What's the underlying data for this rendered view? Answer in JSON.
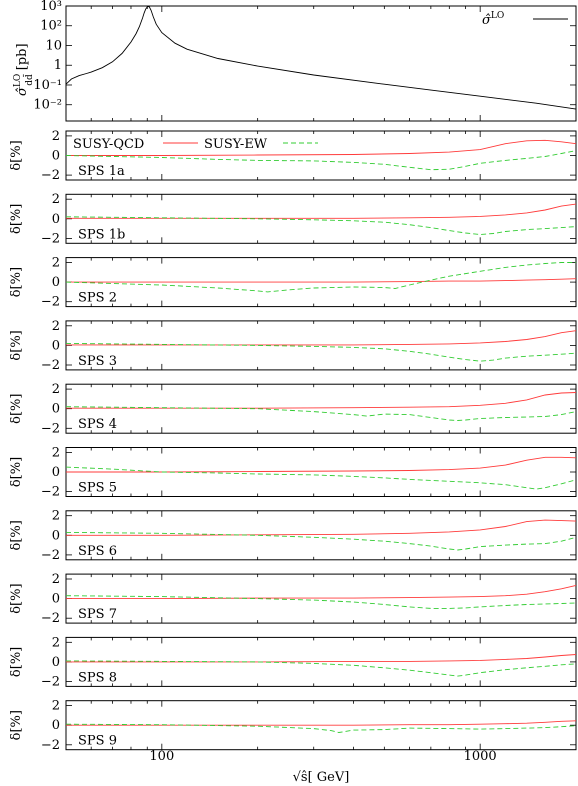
{
  "chart_data": [
    {
      "type": "line",
      "title": "",
      "ylabel": "σ̂LOdd̄ [pb]",
      "ylabel_main": "σ̂",
      "ylabel_sup": "LO",
      "ylabel_sub": "dd̄",
      "ylabel_unit": "[pb]",
      "xscale": "log",
      "yscale": "log",
      "xlim": [
        50,
        2000
      ],
      "ylim": [
        0.0015,
        1000
      ],
      "ytick_labels": [
        "10³",
        "10²",
        "10",
        "1",
        "10⁻¹",
        "10⁻²"
      ],
      "ytick_values": [
        1000,
        100,
        10,
        1,
        0.1,
        0.01
      ],
      "legend": {
        "placement": "top-right",
        "label": "σ̂LO",
        "label_main": "σ̂",
        "label_sup": "LO"
      },
      "series": [
        {
          "color": "#000000",
          "x": [
            50,
            52,
            55,
            58,
            60,
            65,
            70,
            75,
            80,
            83,
            85,
            87,
            88,
            89,
            90,
            91.2,
            92.5,
            94,
            96,
            100,
            110,
            120,
            150,
            200,
            300,
            500,
            700,
            1000,
            1500,
            2000
          ],
          "y": [
            0.11,
            0.2,
            0.3,
            0.38,
            0.45,
            0.75,
            1.5,
            4,
            15,
            40,
            90,
            250,
            450,
            700,
            900,
            950,
            600,
            280,
            120,
            45,
            13,
            6.5,
            2.2,
            0.9,
            0.32,
            0.11,
            0.055,
            0.027,
            0.012,
            0.006
          ]
        }
      ]
    },
    {
      "type": "line",
      "panel_label": "SPS 1a",
      "ylabel": "δ[%]",
      "ylim": [
        -2.5,
        2.5
      ],
      "ytick_labels": [
        "2",
        "0",
        "−2"
      ],
      "ytick_values": [
        2,
        0,
        -2
      ],
      "legend": {
        "placement": "top-left",
        "entries": [
          "SUSY-QCD",
          "SUSY-EW"
        ]
      },
      "series": [
        {
          "name": "SUSY-QCD",
          "color": "#ff3b3b",
          "x": [
            50,
            100,
            200,
            400,
            600,
            800,
            1000,
            1200,
            1400,
            1600,
            1800,
            2000
          ],
          "y": [
            0.0,
            0.0,
            0.05,
            0.1,
            0.2,
            0.35,
            0.6,
            1.2,
            1.5,
            1.55,
            1.4,
            1.2
          ]
        },
        {
          "name": "SUSY-EW",
          "color": "#33cc33",
          "x": [
            50,
            100,
            150,
            200,
            300,
            400,
            500,
            600,
            700,
            800,
            900,
            1000,
            1200,
            1400,
            1600,
            1800,
            2000
          ],
          "y": [
            0.0,
            -0.2,
            -0.4,
            -0.5,
            -0.55,
            -0.7,
            -0.9,
            -1.2,
            -1.45,
            -1.4,
            -1.1,
            -0.8,
            -0.5,
            -0.3,
            -0.1,
            0.2,
            0.5
          ]
        }
      ]
    },
    {
      "type": "line",
      "panel_label": "SPS 1b",
      "ylabel": "δ[%]",
      "ylim": [
        -2.5,
        2.5
      ],
      "ytick_labels": [
        "2",
        "0",
        "−2"
      ],
      "ytick_values": [
        2,
        0,
        -2
      ],
      "series": [
        {
          "name": "SUSY-QCD",
          "color": "#ff3b3b",
          "x": [
            50,
            100,
            200,
            400,
            600,
            800,
            1000,
            1200,
            1400,
            1600,
            1800,
            2000
          ],
          "y": [
            0.05,
            0.05,
            0.05,
            0.05,
            0.1,
            0.15,
            0.25,
            0.4,
            0.6,
            0.9,
            1.3,
            1.5
          ]
        },
        {
          "name": "SUSY-EW",
          "color": "#33cc33",
          "x": [
            50,
            100,
            200,
            300,
            400,
            500,
            600,
            700,
            800,
            900,
            1000,
            1100,
            1200,
            1400,
            1600,
            1800,
            2000
          ],
          "y": [
            0.2,
            0.1,
            0.0,
            -0.1,
            -0.2,
            -0.35,
            -0.6,
            -0.9,
            -1.2,
            -1.45,
            -1.6,
            -1.5,
            -1.3,
            -1.1,
            -1.0,
            -0.9,
            -0.8
          ]
        }
      ]
    },
    {
      "type": "line",
      "panel_label": "SPS 2",
      "ylabel": "δ[%]",
      "ylim": [
        -2.5,
        2.5
      ],
      "ytick_labels": [
        "2",
        "0",
        "−2"
      ],
      "ytick_values": [
        2,
        0,
        -2
      ],
      "series": [
        {
          "name": "SUSY-QCD",
          "color": "#ff3b3b",
          "x": [
            50,
            100,
            200,
            400,
            600,
            800,
            1000,
            1200,
            1400,
            1600,
            1800,
            2000
          ],
          "y": [
            0.0,
            0.0,
            0.0,
            0.0,
            0.05,
            0.1,
            0.1,
            0.15,
            0.2,
            0.25,
            0.3,
            0.35
          ]
        },
        {
          "name": "SUSY-EW",
          "color": "#33cc33",
          "x": [
            50,
            100,
            150,
            200,
            215,
            250,
            300,
            400,
            500,
            540,
            600,
            700,
            800,
            1000,
            1200,
            1400,
            1600,
            1800,
            2000
          ],
          "y": [
            0.0,
            -0.3,
            -0.6,
            -0.9,
            -1.0,
            -0.8,
            -0.6,
            -0.5,
            -0.55,
            -0.65,
            -0.3,
            0.2,
            0.6,
            1.1,
            1.5,
            1.75,
            1.9,
            2.0,
            2.0
          ]
        }
      ]
    },
    {
      "type": "line",
      "panel_label": "SPS 3",
      "ylabel": "δ[%]",
      "ylim": [
        -2.5,
        2.5
      ],
      "ytick_labels": [
        "2",
        "0",
        "−2"
      ],
      "ytick_values": [
        2,
        0,
        -2
      ],
      "series": [
        {
          "name": "SUSY-QCD",
          "color": "#ff3b3b",
          "x": [
            50,
            100,
            200,
            400,
            600,
            800,
            1000,
            1200,
            1400,
            1600,
            1800,
            2000
          ],
          "y": [
            0.05,
            0.05,
            0.05,
            0.05,
            0.1,
            0.15,
            0.25,
            0.4,
            0.6,
            0.9,
            1.3,
            1.5
          ]
        },
        {
          "name": "SUSY-EW",
          "color": "#33cc33",
          "x": [
            50,
            100,
            200,
            300,
            400,
            500,
            600,
            700,
            800,
            900,
            1000,
            1100,
            1200,
            1400,
            1600,
            1800,
            2000
          ],
          "y": [
            0.2,
            0.1,
            0.0,
            -0.1,
            -0.2,
            -0.35,
            -0.6,
            -0.9,
            -1.2,
            -1.45,
            -1.6,
            -1.5,
            -1.3,
            -1.1,
            -1.0,
            -0.9,
            -0.8
          ]
        }
      ]
    },
    {
      "type": "line",
      "panel_label": "SPS 4",
      "ylabel": "δ[%]",
      "ylim": [
        -2.5,
        2.5
      ],
      "ytick_labels": [
        "2",
        "0",
        "−2"
      ],
      "ytick_values": [
        2,
        0,
        -2
      ],
      "series": [
        {
          "name": "SUSY-QCD",
          "color": "#ff3b3b",
          "x": [
            50,
            100,
            200,
            400,
            600,
            800,
            1000,
            1200,
            1400,
            1600,
            1800,
            2000
          ],
          "y": [
            0.05,
            0.05,
            0.05,
            0.1,
            0.15,
            0.2,
            0.35,
            0.55,
            0.9,
            1.4,
            1.6,
            1.65
          ]
        },
        {
          "name": "SUSY-EW",
          "color": "#33cc33",
          "x": [
            50,
            100,
            200,
            300,
            400,
            440,
            500,
            600,
            700,
            800,
            850,
            900,
            1000,
            1200,
            1400,
            1600,
            1800,
            2000
          ],
          "y": [
            0.2,
            0.1,
            0.0,
            -0.3,
            -0.6,
            -0.75,
            -0.55,
            -0.6,
            -0.9,
            -1.15,
            -1.2,
            -1.15,
            -1.0,
            -0.9,
            -0.85,
            -0.8,
            -0.6,
            -0.3
          ]
        }
      ]
    },
    {
      "type": "line",
      "panel_label": "SPS 5",
      "ylabel": "δ[%]",
      "ylim": [
        -2.5,
        2.5
      ],
      "ytick_labels": [
        "2",
        "0",
        "−2"
      ],
      "ytick_values": [
        2,
        0,
        -2
      ],
      "series": [
        {
          "name": "SUSY-QCD",
          "color": "#ff3b3b",
          "x": [
            50,
            100,
            200,
            400,
            600,
            800,
            1000,
            1200,
            1400,
            1600,
            1800,
            2000
          ],
          "y": [
            0.0,
            0.0,
            0.05,
            0.1,
            0.15,
            0.25,
            0.4,
            0.7,
            1.2,
            1.5,
            1.5,
            1.45
          ]
        },
        {
          "name": "SUSY-EW",
          "color": "#33cc33",
          "x": [
            50,
            70,
            100,
            150,
            200,
            300,
            400,
            500,
            600,
            800,
            1000,
            1200,
            1400,
            1500,
            1600,
            1800,
            2000
          ],
          "y": [
            0.5,
            0.3,
            0.0,
            -0.1,
            -0.2,
            -0.3,
            -0.45,
            -0.6,
            -0.75,
            -0.95,
            -1.1,
            -1.3,
            -1.6,
            -1.75,
            -1.6,
            -1.2,
            -0.8
          ]
        }
      ]
    },
    {
      "type": "line",
      "panel_label": "SPS 6",
      "ylabel": "δ[%]",
      "ylim": [
        -2.5,
        2.5
      ],
      "ytick_labels": [
        "2",
        "0",
        "−2"
      ],
      "ytick_values": [
        2,
        0,
        -2
      ],
      "series": [
        {
          "name": "SUSY-QCD",
          "color": "#ff3b3b",
          "x": [
            50,
            100,
            200,
            400,
            600,
            800,
            1000,
            1200,
            1400,
            1600,
            1800,
            2000
          ],
          "y": [
            0.0,
            0.0,
            0.05,
            0.1,
            0.2,
            0.35,
            0.55,
            0.9,
            1.4,
            1.55,
            1.5,
            1.45
          ]
        },
        {
          "name": "SUSY-EW",
          "color": "#33cc33",
          "x": [
            50,
            100,
            200,
            300,
            400,
            500,
            600,
            700,
            800,
            850,
            900,
            1000,
            1200,
            1400,
            1600,
            1800,
            2000
          ],
          "y": [
            0.3,
            0.2,
            0.0,
            -0.2,
            -0.4,
            -0.6,
            -0.85,
            -1.1,
            -1.4,
            -1.5,
            -1.4,
            -1.15,
            -1.0,
            -0.9,
            -0.85,
            -0.6,
            -0.2
          ]
        }
      ]
    },
    {
      "type": "line",
      "panel_label": "SPS 7",
      "ylabel": "δ[%]",
      "ylim": [
        -2.5,
        2.5
      ],
      "ytick_labels": [
        "2",
        "0",
        "−2"
      ],
      "ytick_values": [
        2,
        0,
        -2
      ],
      "series": [
        {
          "name": "SUSY-QCD",
          "color": "#ff3b3b",
          "x": [
            50,
            100,
            200,
            400,
            600,
            800,
            1000,
            1200,
            1400,
            1600,
            1800,
            2000
          ],
          "y": [
            0.0,
            0.0,
            0.05,
            0.05,
            0.1,
            0.15,
            0.2,
            0.3,
            0.45,
            0.7,
            1.0,
            1.35
          ]
        },
        {
          "name": "SUSY-EW",
          "color": "#33cc33",
          "x": [
            50,
            100,
            200,
            300,
            400,
            500,
            600,
            700,
            800,
            900,
            1000,
            1200,
            1400,
            1600,
            1800,
            2000
          ],
          "y": [
            0.3,
            0.2,
            0.0,
            -0.15,
            -0.35,
            -0.6,
            -0.85,
            -1.0,
            -1.0,
            -0.95,
            -0.85,
            -0.7,
            -0.6,
            -0.55,
            -0.5,
            -0.45
          ]
        }
      ]
    },
    {
      "type": "line",
      "panel_label": "SPS 8",
      "ylabel": "δ[%]",
      "ylim": [
        -2.5,
        2.5
      ],
      "ytick_labels": [
        "2",
        "0",
        "−2"
      ],
      "ytick_values": [
        2,
        0,
        -2
      ],
      "series": [
        {
          "name": "SUSY-QCD",
          "color": "#ff3b3b",
          "x": [
            50,
            100,
            200,
            400,
            600,
            800,
            1000,
            1200,
            1400,
            1600,
            1800,
            2000
          ],
          "y": [
            0.0,
            0.0,
            0.0,
            0.05,
            0.05,
            0.1,
            0.15,
            0.25,
            0.35,
            0.5,
            0.65,
            0.75
          ]
        },
        {
          "name": "SUSY-EW",
          "color": "#33cc33",
          "x": [
            50,
            100,
            200,
            300,
            400,
            500,
            600,
            700,
            800,
            850,
            900,
            1000,
            1200,
            1400,
            1600,
            1800,
            2000
          ],
          "y": [
            0.1,
            0.05,
            0.0,
            -0.15,
            -0.35,
            -0.6,
            -0.85,
            -1.1,
            -1.35,
            -1.45,
            -1.35,
            -1.1,
            -0.8,
            -0.6,
            -0.45,
            -0.3,
            -0.2
          ]
        }
      ]
    },
    {
      "type": "line",
      "panel_label": "SPS 9",
      "ylabel": "δ[%]",
      "ylim": [
        -2.5,
        2.5
      ],
      "ytick_labels": [
        "2",
        "0",
        "−2"
      ],
      "ytick_values": [
        2,
        0,
        -2
      ],
      "xlabel": "√ŝ[ GeV]",
      "xtick_labels": [
        "100",
        "1000"
      ],
      "xtick_values": [
        100,
        1000
      ],
      "series": [
        {
          "name": "SUSY-QCD",
          "color": "#ff3b3b",
          "x": [
            50,
            100,
            200,
            400,
            600,
            800,
            1000,
            1200,
            1400,
            1600,
            1800,
            2000
          ],
          "y": [
            0.0,
            0.0,
            0.0,
            0.0,
            0.05,
            0.05,
            0.1,
            0.15,
            0.2,
            0.3,
            0.4,
            0.45
          ]
        },
        {
          "name": "SUSY-EW",
          "color": "#33cc33",
          "x": [
            50,
            100,
            200,
            300,
            340,
            360,
            400,
            500,
            600,
            800,
            1000,
            1200,
            1400,
            1600,
            1800,
            2000
          ],
          "y": [
            0.1,
            0.05,
            -0.1,
            -0.35,
            -0.55,
            -0.75,
            -0.5,
            -0.45,
            -0.3,
            -0.35,
            -0.4,
            -0.35,
            -0.3,
            -0.25,
            -0.15,
            -0.05
          ]
        }
      ]
    }
  ]
}
